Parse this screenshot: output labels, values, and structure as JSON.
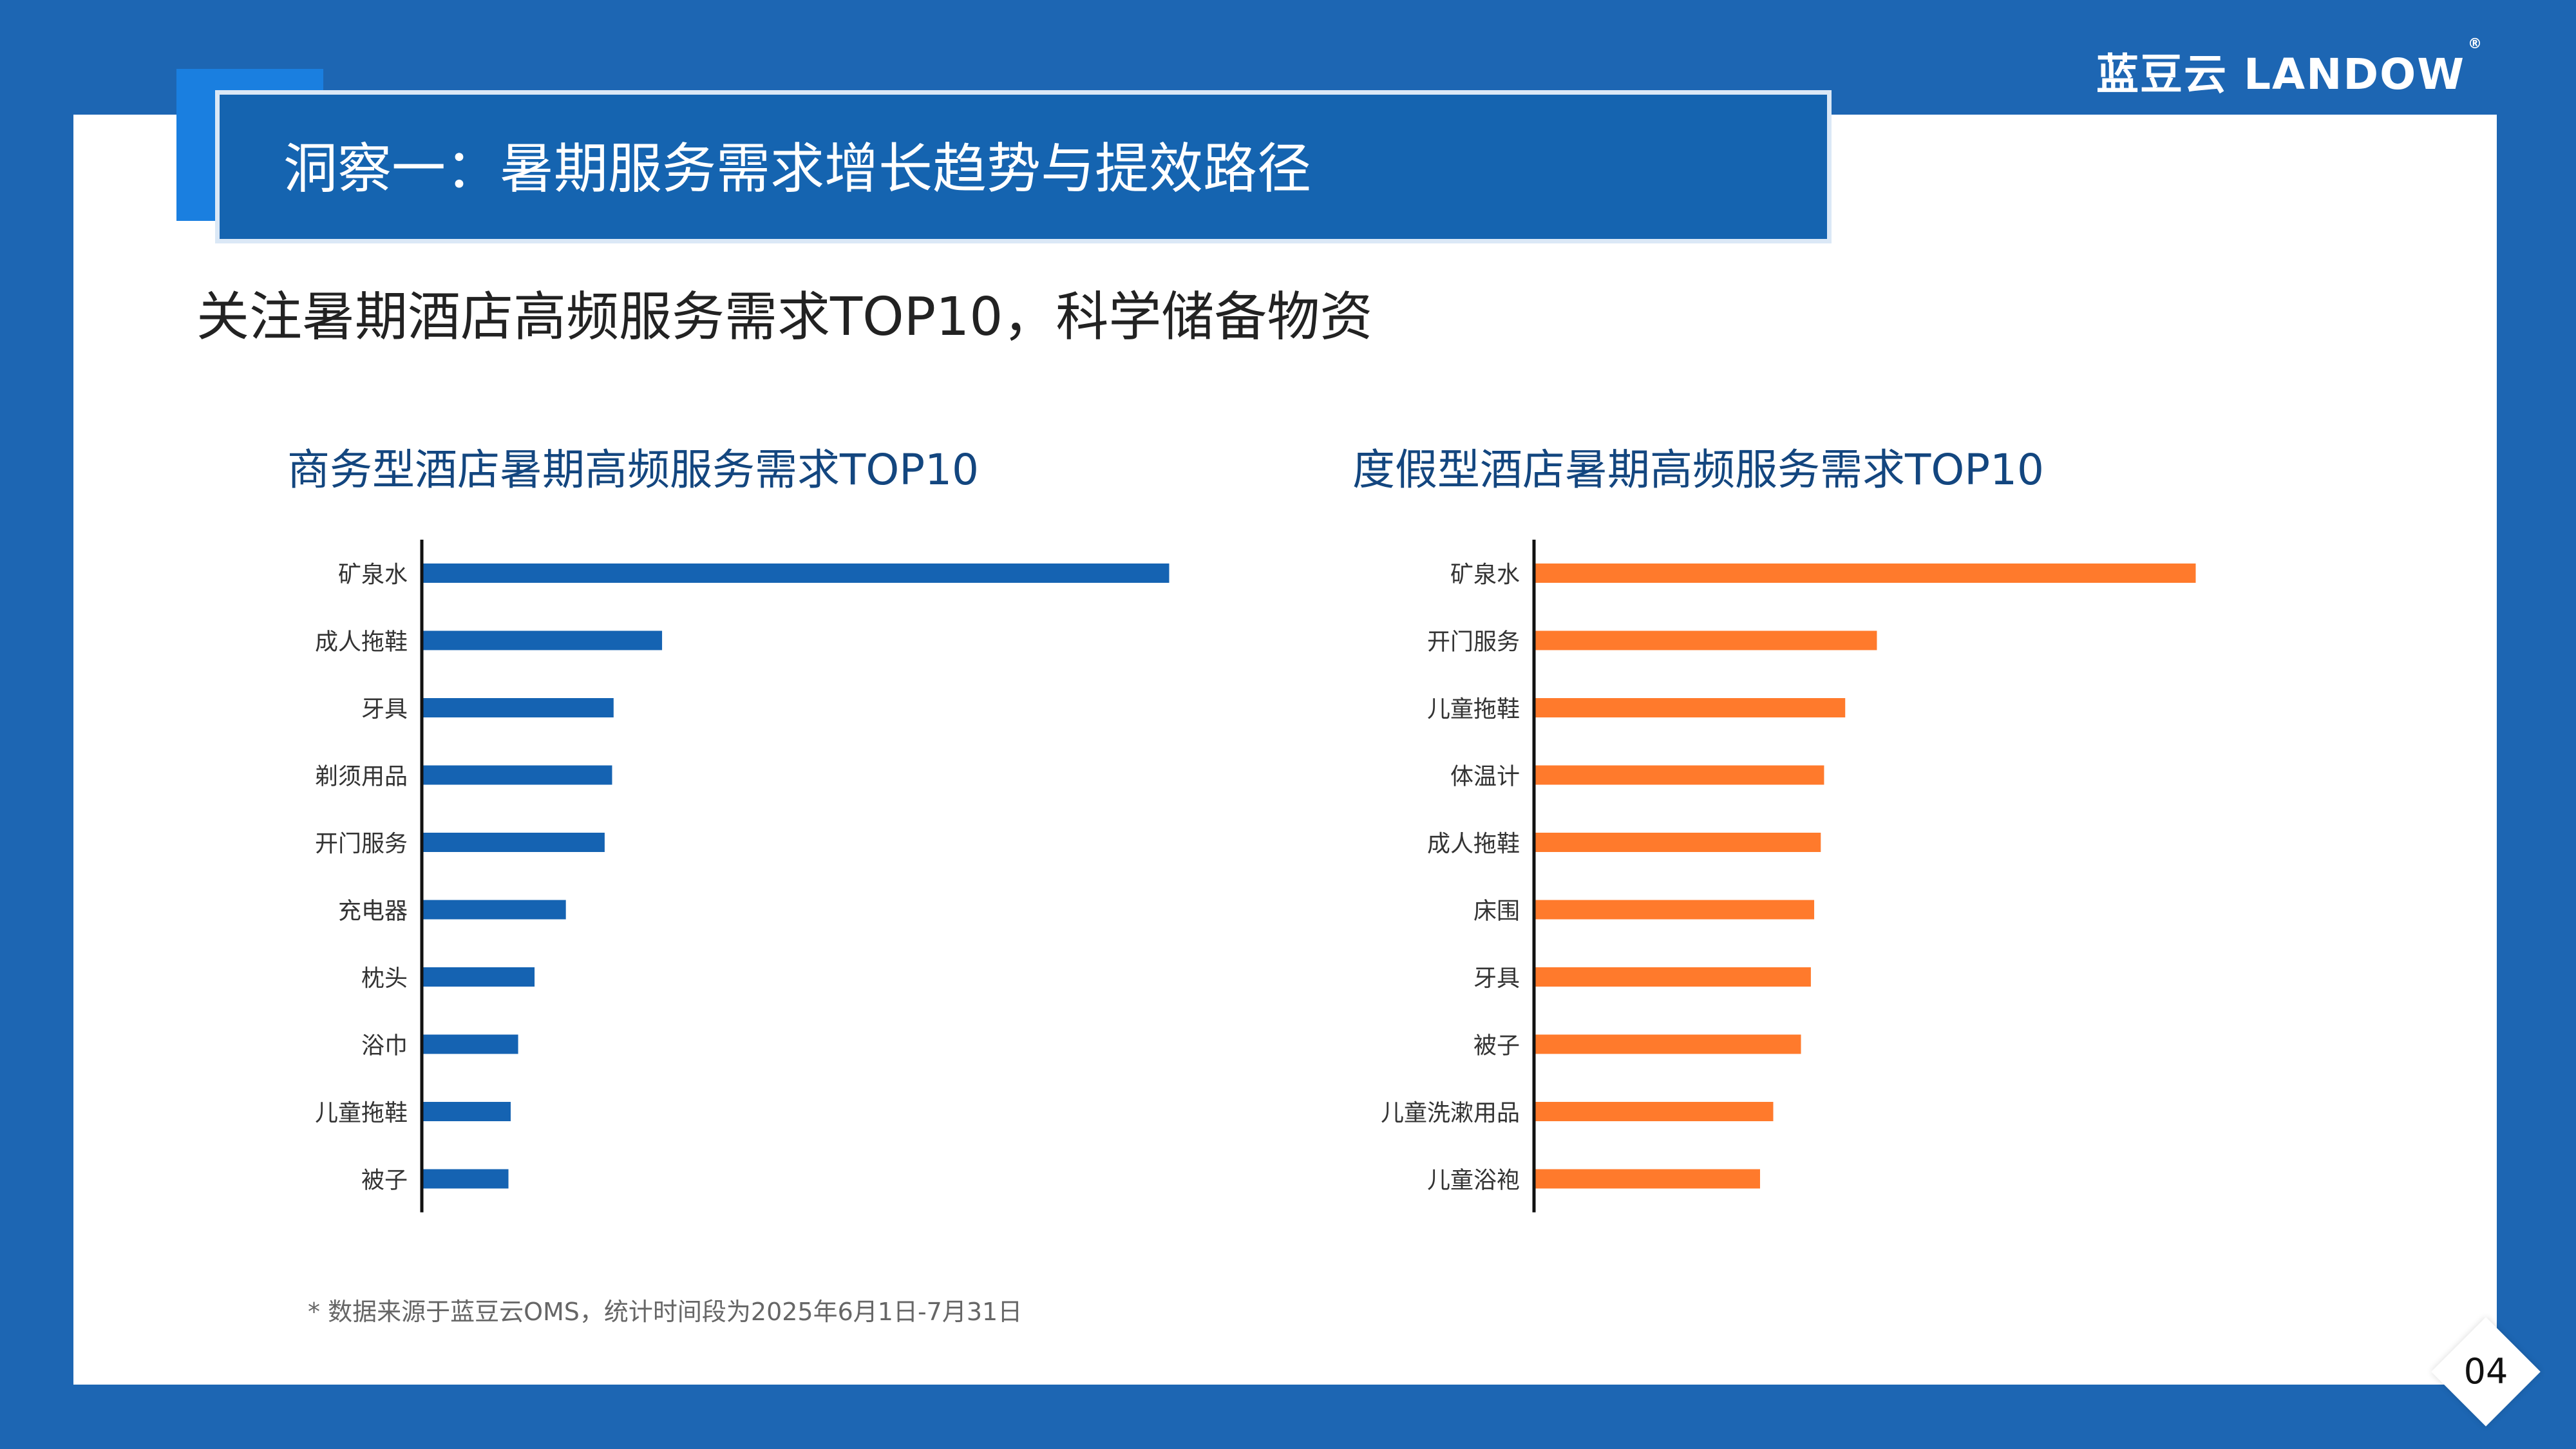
{
  "brand": {
    "name": "蓝豆云 LANDOW",
    "registered": "®"
  },
  "header": {
    "title": "洞察一：暑期服务需求增长趋势与提效路径"
  },
  "subtitle": "关注暑期酒店高频服务需求TOP10，科学储备物资",
  "colors": {
    "business": "#1563b2",
    "resort": "#ff7a2c",
    "header_bg": "#1564b0",
    "page_bg": "#1d66b3"
  },
  "chart_data": [
    {
      "type": "bar",
      "orientation": "horizontal",
      "title": "商务型酒店暑期高频服务需求TOP10",
      "categories": [
        "矿泉水",
        "成人拖鞋",
        "牙具",
        "剃须用品",
        "开门服务",
        "充电器",
        "枕头",
        "浴巾",
        "儿童拖鞋",
        "被子"
      ],
      "values": [
        100,
        32,
        25.5,
        25.3,
        24.3,
        19.1,
        14.9,
        12.7,
        11.7,
        11.4
      ],
      "color": "#1563b2",
      "xlabel": "",
      "ylabel": "",
      "grid": false
    },
    {
      "type": "bar",
      "orientation": "horizontal",
      "title": "度假型酒店暑期高频服务需求TOP10",
      "categories": [
        "矿泉水",
        "开门服务",
        "儿童拖鞋",
        "体温计",
        "成人拖鞋",
        "床围",
        "牙具",
        "被子",
        "儿童洗漱用品",
        "儿童浴袍"
      ],
      "values": [
        100,
        51.7,
        46.9,
        43.7,
        43.2,
        42.2,
        41.7,
        40.2,
        36,
        34
      ],
      "color": "#ff7a2c",
      "xlabel": "",
      "ylabel": "",
      "grid": false
    }
  ],
  "footnote": "* 数据来源于蓝豆云OMS，统计时间段为2025年6月1日-7月31日",
  "page_number": "04"
}
